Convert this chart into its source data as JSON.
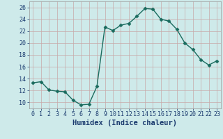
{
  "x": [
    0,
    1,
    2,
    3,
    4,
    5,
    6,
    7,
    8,
    9,
    10,
    11,
    12,
    13,
    14,
    15,
    16,
    17,
    18,
    19,
    20,
    21,
    22,
    23
  ],
  "y": [
    13.3,
    13.5,
    12.1,
    11.9,
    11.8,
    10.4,
    9.6,
    9.7,
    12.7,
    22.7,
    22.1,
    23.0,
    23.3,
    24.5,
    25.8,
    25.7,
    24.0,
    23.7,
    22.3,
    20.0,
    18.9,
    17.2,
    16.3,
    17.0
  ],
  "line_color": "#1a6b5e",
  "bg_color": "#ceeaea",
  "grid_color_h": "#c8a8a8",
  "grid_color_v": "#c8a8a8",
  "xlabel": "Humidex (Indice chaleur)",
  "ylim": [
    9,
    27
  ],
  "yticks": [
    10,
    12,
    14,
    16,
    18,
    20,
    22,
    24,
    26
  ],
  "xticks": [
    0,
    1,
    2,
    3,
    4,
    5,
    6,
    7,
    8,
    9,
    10,
    11,
    12,
    13,
    14,
    15,
    16,
    17,
    18,
    19,
    20,
    21,
    22,
    23
  ],
  "marker": "D",
  "marker_size": 2.5,
  "line_width": 1.0,
  "xlabel_fontsize": 7.5,
  "tick_fontsize": 6.0,
  "xlabel_color": "#1a3a6e"
}
